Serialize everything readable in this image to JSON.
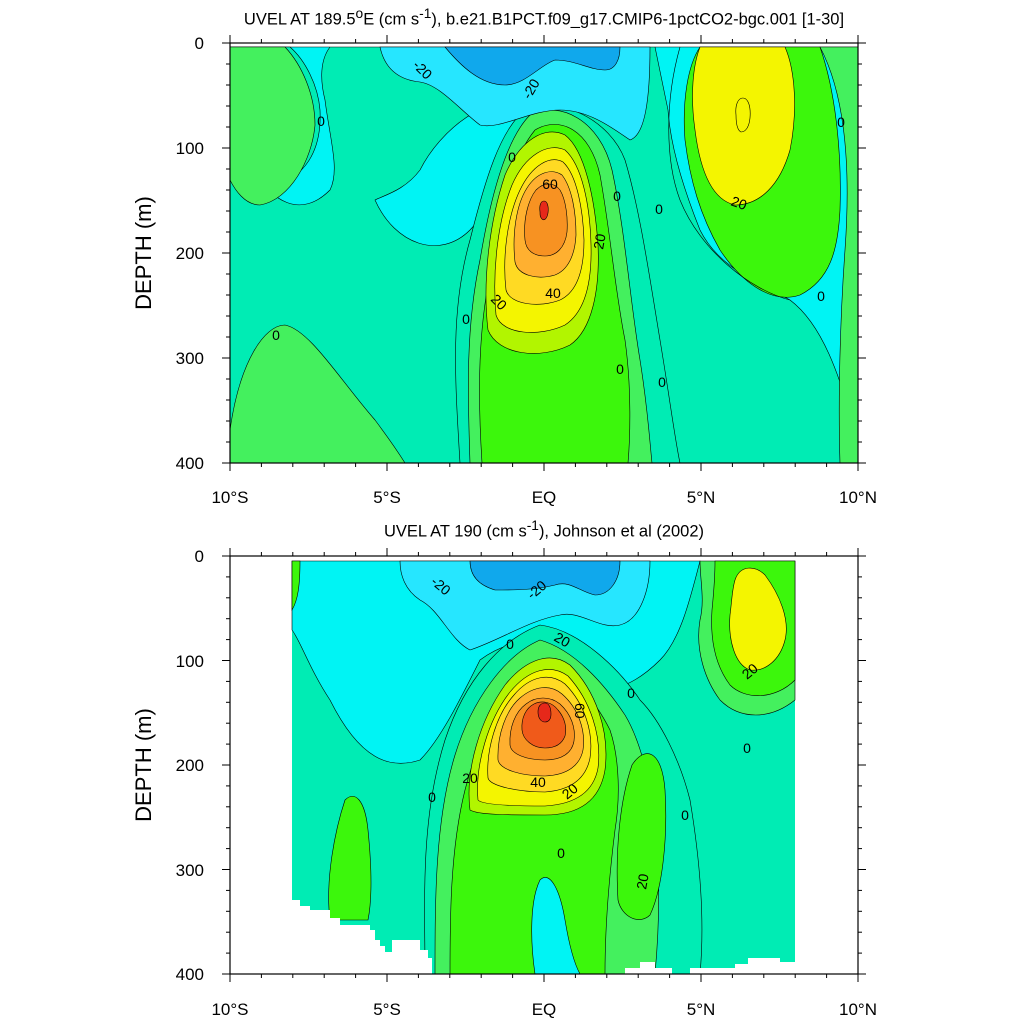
{
  "chart_data": [
    {
      "type": "contour",
      "title_main": "UVEL AT 189.5",
      "title_sup_o": "o",
      "title_mid": "E (cm s",
      "title_sup_exp": "-1",
      "title_rest": "), b.e21.B1PCT.f09_g17.CMIP6-1pctCO2-bgc.001 [1-30]",
      "xlabel": "",
      "ylabel": "DEPTH (m)",
      "x_ticks": [
        "10°S",
        "5°S",
        "EQ",
        "5°N",
        "10°N"
      ],
      "x_range": [
        -10,
        10
      ],
      "y_ticks": [
        "0",
        "100",
        "200",
        "300",
        "400"
      ],
      "y_range": [
        0,
        400
      ],
      "contour_labels": [
        "-20",
        "-20",
        "0",
        "0",
        "0",
        "60",
        "20",
        "40",
        "20",
        "0",
        "0",
        "0",
        "0",
        "20",
        "0",
        "0",
        "0"
      ]
    },
    {
      "type": "contour",
      "title_main": "UVEL AT 190 (cm s",
      "title_sup_exp": "-1",
      "title_rest": "), Johnson et al (2002)",
      "xlabel": "",
      "ylabel": "DEPTH (m)",
      "x_ticks": [
        "10°S",
        "5°S",
        "EQ",
        "5°N",
        "10°N"
      ],
      "x_range": [
        -10,
        10
      ],
      "y_ticks": [
        "0",
        "100",
        "200",
        "300",
        "400"
      ],
      "y_range": [
        0,
        400
      ],
      "contour_labels": [
        "-20",
        "-20",
        "0",
        "20",
        "60",
        "40",
        "20",
        "20",
        "0",
        "0",
        "20",
        "0",
        "20",
        "0",
        "0"
      ]
    }
  ],
  "colors": {
    "lvl_neg40": "#10a8ec",
    "lvl_neg20": "#26e6ff",
    "lvl_neg10": "#00f4f4",
    "lvl_0": "#00ecb4",
    "lvl_10": "#44f05e",
    "lvl_20": "#3cf70c",
    "lvl_30": "#b2f500",
    "lvl_40": "#f4f500",
    "lvl_50": "#ffda23",
    "lvl_60": "#ffb030",
    "lvl_70": "#f79222",
    "lvl_80": "#f05a1a",
    "lvl_90": "#e6281a"
  }
}
